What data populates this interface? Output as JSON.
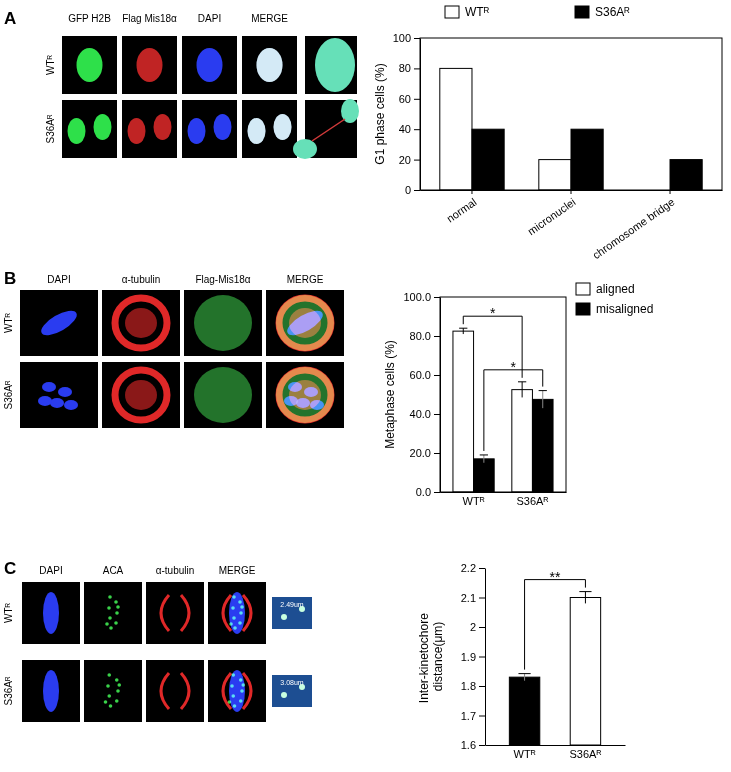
{
  "figure": {
    "panels": [
      {
        "letter": "A",
        "columns": [
          "GFP H2B",
          "Flag Mis18α",
          "DAPI",
          "MERGE"
        ],
        "rows": [
          "WTᴿ",
          "S36Aᴿ"
        ]
      },
      {
        "letter": "B",
        "columns": [
          "DAPI",
          "α-tubulin",
          "Flag-Mis18α",
          "MERGE"
        ],
        "rows": [
          "WTᴿ",
          "S36Aᴿ"
        ]
      },
      {
        "letter": "C",
        "columns": [
          "DAPI",
          "ACA",
          "α-tubulin",
          "MERGE"
        ],
        "rows": [
          "WTᴿ",
          "S36Aᴿ"
        ],
        "insets": [
          "2.49um",
          "3.08um"
        ]
      }
    ]
  },
  "chart_data": [
    {
      "type": "bar",
      "y_label": "G1 phase cells (%)",
      "categories": [
        "normal",
        "micronuclei",
        "chromosome bridge"
      ],
      "series": [
        {
          "name": "WTᴿ",
          "color": "#ffffff",
          "values": [
            80,
            20,
            0
          ]
        },
        {
          "name": "S36Aᴿ",
          "color": "#000000",
          "values": [
            40,
            40,
            20
          ]
        }
      ],
      "ylim": [
        0,
        100
      ],
      "yticks": [
        0,
        20,
        40,
        60,
        80,
        100
      ],
      "legend": "top"
    },
    {
      "type": "bar",
      "y_label": "Metaphase cells (%)",
      "categories": [
        "WTᴿ",
        "S36Aᴿ"
      ],
      "series": [
        {
          "name": "aligned",
          "color": "#ffffff",
          "values": [
            82.5,
            52.5
          ],
          "errors": [
            1.5,
            4
          ]
        },
        {
          "name": "misaligned",
          "color": "#000000",
          "values": [
            17,
            47.5
          ],
          "errors": [
            2,
            4.5
          ]
        }
      ],
      "ylim": [
        0,
        100
      ],
      "yticks": [
        {
          "value": 0,
          "label": "0.0"
        },
        {
          "value": 20,
          "label": "20.0"
        },
        {
          "value": 40,
          "label": "40.0"
        },
        {
          "value": 60,
          "label": "60.0"
        },
        {
          "value": 80,
          "label": "80.0"
        },
        {
          "value": 100,
          "label": "100.0"
        }
      ],
      "legend": "right",
      "annotations": [
        "*",
        "*"
      ]
    },
    {
      "type": "bar",
      "y_label": "Inter-kinetochore distance(μm)",
      "categories": [
        "WTᴿ",
        "S36Aᴿ"
      ],
      "values": [
        1.83,
        2.1
      ],
      "errors": [
        0.012,
        0.02
      ],
      "colors": [
        "#000000",
        "#ffffff"
      ],
      "ylim": [
        1.6,
        2.2
      ],
      "yticks": [
        1.6,
        1.7,
        1.8,
        1.9,
        2,
        2.1,
        2.2
      ],
      "annotations": [
        "**"
      ]
    }
  ]
}
